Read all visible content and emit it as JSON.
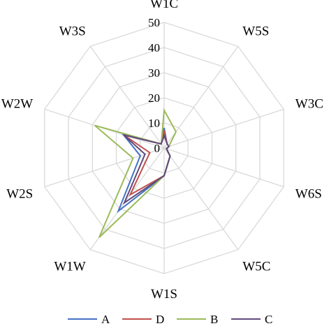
{
  "chart_data": {
    "type": "radar",
    "title": "",
    "categories": [
      "W1C",
      "W5S",
      "W3C",
      "W6S",
      "W5C",
      "W1S",
      "W1W",
      "W2S",
      "W2W",
      "W3S"
    ],
    "rlim": [
      0,
      50
    ],
    "ticks": [
      "0",
      "10",
      "20",
      "30",
      "40",
      "50"
    ],
    "tick_values": [
      0,
      10,
      20,
      30,
      40,
      50
    ],
    "grid": true,
    "legend_position": "bottom",
    "series": [
      {
        "name": "A",
        "color": "#4472C4",
        "values": [
          8,
          2,
          2,
          1,
          4,
          11,
          31,
          10,
          17,
          2
        ]
      },
      {
        "name": "D",
        "color": "#C0504D",
        "values": [
          7,
          2,
          2,
          1,
          4,
          11,
          23,
          6,
          17,
          2
        ]
      },
      {
        "name": "B",
        "color": "#9BBB59",
        "values": [
          15,
          8,
          2,
          1,
          4,
          11,
          44,
          13,
          29,
          2
        ]
      },
      {
        "name": "C",
        "color": "#604A7B",
        "values": [
          5,
          2,
          2,
          1,
          4,
          11,
          27,
          8,
          17,
          2
        ]
      }
    ]
  }
}
